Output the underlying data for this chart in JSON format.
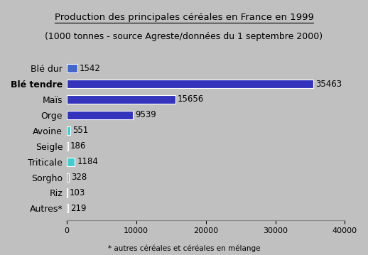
{
  "title_line1": "Production des principales céréales en France en 1999",
  "title_line2": "(1000 tonnes - source Agreste/données du 1 septembre 2000)",
  "footnote": "* autres céréales et céréales en mélange",
  "categories": [
    "Autres*",
    "Riz",
    "Sorgho",
    "Triticale",
    "Seigle",
    "Avoine",
    "Orge",
    "Maïs",
    "Blé tendre",
    "Blé dur"
  ],
  "values": [
    219,
    103,
    328,
    1184,
    186,
    551,
    9539,
    15656,
    35463,
    1542
  ],
  "bar_colors": [
    "#aaaaaa",
    "#aaaaaa",
    "#aaaaaa",
    "#44cccc",
    "#aaaaaa",
    "#44cccc",
    "#3333bb",
    "#3333bb",
    "#3333bb",
    "#4466cc"
  ],
  "background_color": "#c0c0c0",
  "xlim": [
    0,
    40000
  ],
  "xticks": [
    0,
    10000,
    20000,
    30000,
    40000
  ],
  "label_fontsize": 9,
  "title_fontsize": 9.5,
  "subtitle_fontsize": 9,
  "value_fontsize": 8.5,
  "footnote_fontsize": 7.5,
  "bold_label_index": 8
}
